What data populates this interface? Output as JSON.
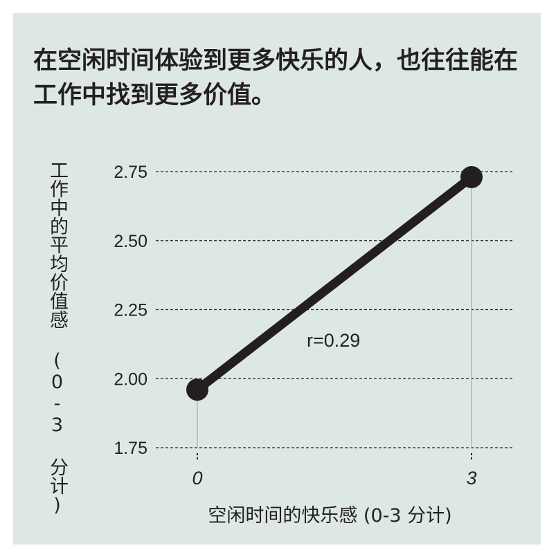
{
  "colors": {
    "background": "#dde8e5",
    "line": "#231f20",
    "grid": "#231f20",
    "guide": "#9bbdb5"
  },
  "chart_data": {
    "type": "line",
    "title": "在空闲时间体验到更多快乐的人，也往往能在工作中找到更多价值。",
    "xlabel": "空闲时间的快乐感 (0-3 分计)",
    "ylabel": "工作中的平均价值感 (0-3 分计)",
    "x": [
      0,
      3
    ],
    "y": [
      1.96,
      2.73
    ],
    "x_ticks": [
      "0",
      "3"
    ],
    "y_ticks": [
      "1.75",
      "2.00",
      "2.25",
      "2.50",
      "2.75"
    ],
    "ylim": [
      1.75,
      2.75
    ],
    "grid": "horizontal dashed",
    "annotation": "r=0.29"
  }
}
